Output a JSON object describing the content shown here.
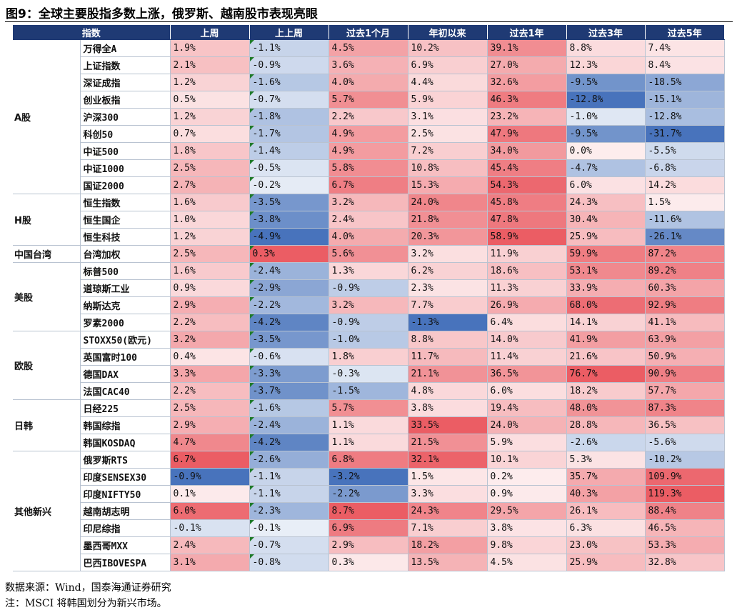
{
  "title": "图9：全球主要股指多数上涨，俄罗斯、越南股市表现亮眼",
  "chart_data": {
    "type": "table",
    "columns": [
      "指数",
      "上周",
      "上上周",
      "过去1个月",
      "年初以来",
      "过去1年",
      "过去3年",
      "过去5年"
    ],
    "colors": {
      "header_bg": "#1f3a74",
      "positive": "#e8474f",
      "negative": "#3e6cb8",
      "neutral": "#ffffff"
    },
    "groups": [
      {
        "name": "A股",
        "rows": [
          {
            "index": "万得全A",
            "values": [
              1.9,
              -1.1,
              4.5,
              10.2,
              39.1,
              8.8,
              7.4
            ]
          },
          {
            "index": "上证指数",
            "values": [
              2.1,
              -0.9,
              3.6,
              6.9,
              27.0,
              12.3,
              8.4
            ]
          },
          {
            "index": "深证成指",
            "values": [
              1.2,
              -1.6,
              4.0,
              4.4,
              32.6,
              -9.5,
              -18.5
            ]
          },
          {
            "index": "创业板指",
            "values": [
              0.5,
              -0.7,
              5.7,
              5.9,
              46.3,
              -12.8,
              -15.1
            ]
          },
          {
            "index": "沪深300",
            "values": [
              1.2,
              -1.8,
              2.2,
              3.1,
              23.2,
              -1.0,
              -12.8
            ]
          },
          {
            "index": "科创50",
            "values": [
              0.7,
              -1.7,
              4.9,
              2.5,
              47.9,
              -9.5,
              -31.7
            ]
          },
          {
            "index": "中证500",
            "values": [
              1.8,
              -1.4,
              4.9,
              7.2,
              34.0,
              0.0,
              -5.5
            ]
          },
          {
            "index": "中证1000",
            "values": [
              2.5,
              -0.5,
              5.8,
              10.8,
              45.4,
              -4.7,
              -6.8
            ]
          },
          {
            "index": "国证2000",
            "values": [
              2.7,
              -0.2,
              6.7,
              15.3,
              54.3,
              6.0,
              14.2
            ]
          }
        ]
      },
      {
        "name": "H股",
        "rows": [
          {
            "index": "恒生指数",
            "values": [
              1.6,
              -3.5,
              3.2,
              24.0,
              45.8,
              24.3,
              1.5
            ]
          },
          {
            "index": "恒生国企",
            "values": [
              1.0,
              -3.8,
              2.4,
              21.8,
              47.8,
              30.4,
              -11.6
            ]
          },
          {
            "index": "恒生科技",
            "values": [
              1.2,
              -4.9,
              4.0,
              20.3,
              58.9,
              25.9,
              -26.1
            ]
          }
        ]
      },
      {
        "name": "中国台湾",
        "rows": [
          {
            "index": "台湾加权",
            "values": [
              2.5,
              0.3,
              5.6,
              3.2,
              11.9,
              59.9,
              87.2
            ]
          }
        ]
      },
      {
        "name": "美股",
        "rows": [
          {
            "index": "标普500",
            "values": [
              1.6,
              -2.4,
              1.3,
              6.2,
              18.6,
              53.1,
              89.2
            ]
          },
          {
            "index": "道琼斯工业",
            "values": [
              0.9,
              -2.9,
              -0.9,
              2.3,
              11.3,
              33.9,
              60.3
            ]
          },
          {
            "index": "纳斯达克",
            "values": [
              2.9,
              -2.2,
              3.2,
              7.7,
              26.9,
              68.0,
              92.9
            ]
          },
          {
            "index": "罗素2000",
            "values": [
              2.2,
              -4.2,
              -0.9,
              -1.3,
              6.4,
              14.1,
              41.1
            ]
          }
        ]
      },
      {
        "name": "欧股",
        "rows": [
          {
            "index": "STOXX50(欧元)",
            "values": [
              3.2,
              -3.5,
              -1.0,
              8.8,
              14.0,
              41.9,
              63.9
            ]
          },
          {
            "index": "英国富时100",
            "values": [
              0.4,
              -0.6,
              1.8,
              11.7,
              11.4,
              21.6,
              50.9
            ]
          },
          {
            "index": "德国DAX",
            "values": [
              3.3,
              -3.3,
              -0.3,
              21.1,
              36.5,
              76.7,
              90.9
            ]
          },
          {
            "index": "法国CAC40",
            "values": [
              2.2,
              -3.7,
              -1.5,
              4.8,
              6.0,
              18.2,
              57.7
            ]
          }
        ]
      },
      {
        "name": "日韩",
        "rows": [
          {
            "index": "日经225",
            "values": [
              2.5,
              -1.6,
              5.7,
              3.8,
              19.4,
              48.0,
              87.3
            ]
          },
          {
            "index": "韩国综指",
            "values": [
              2.9,
              -2.4,
              1.1,
              33.5,
              24.0,
              28.8,
              36.5
            ]
          },
          {
            "index": "韩国KOSDAQ",
            "values": [
              4.7,
              -4.2,
              1.1,
              21.5,
              5.9,
              -2.6,
              -5.6
            ]
          }
        ]
      },
      {
        "name": "其他新兴",
        "rows": [
          {
            "index": "俄罗斯RTS",
            "values": [
              6.7,
              -2.6,
              6.8,
              32.1,
              10.1,
              5.3,
              -10.2
            ]
          },
          {
            "index": "印度SENSEX30",
            "values": [
              -0.9,
              -1.1,
              -3.2,
              1.5,
              0.2,
              35.7,
              109.9
            ]
          },
          {
            "index": "印度NIFTY50",
            "values": [
              0.1,
              -1.1,
              -2.2,
              3.3,
              0.9,
              40.3,
              119.3
            ]
          },
          {
            "index": "越南胡志明",
            "values": [
              6.0,
              -2.3,
              8.7,
              24.3,
              29.5,
              26.1,
              88.4
            ]
          },
          {
            "index": "印尼综指",
            "values": [
              -0.1,
              -0.1,
              6.9,
              7.1,
              3.8,
              6.3,
              46.5
            ]
          },
          {
            "index": "墨西哥MXX",
            "values": [
              2.4,
              -0.7,
              2.9,
              18.2,
              9.8,
              23.0,
              53.3
            ]
          },
          {
            "index": "巴西IBOVESPA",
            "values": [
              3.1,
              -0.8,
              0.3,
              13.5,
              4.5,
              25.9,
              32.8
            ]
          }
        ]
      }
    ]
  },
  "notes": {
    "source": "数据来源：Wind，国泰海通证券研究",
    "msci": "注：MSCI 将韩国划分为新兴市场。"
  }
}
